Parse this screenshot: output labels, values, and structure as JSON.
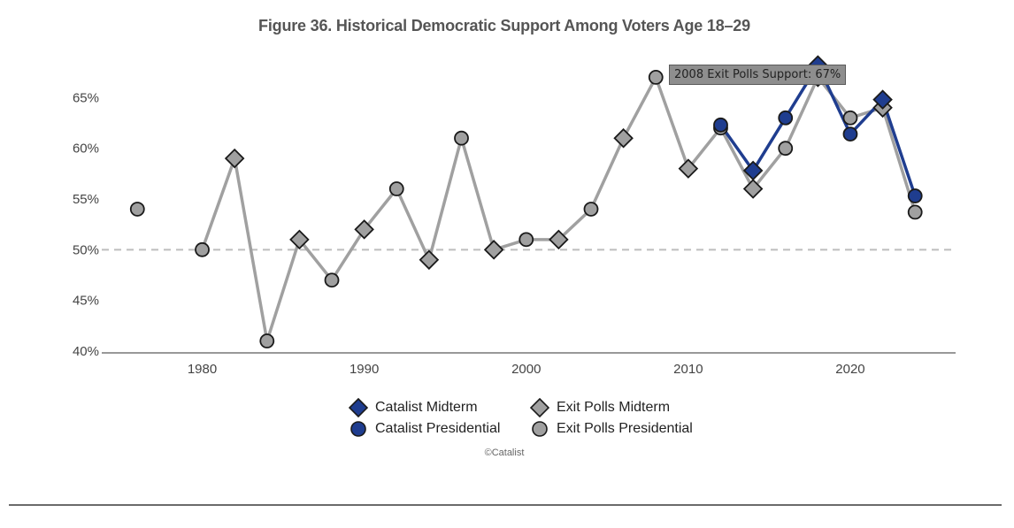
{
  "chart_data": {
    "type": "line",
    "title": "Figure 36. Historical Democratic Support Among Voters Age 18–29",
    "xlabel": "",
    "ylabel": "",
    "xlim": [
      1973.8,
      2026.5
    ],
    "ylim": [
      40,
      70
    ],
    "x_ticks": [
      1980,
      1990,
      2000,
      2010,
      2020
    ],
    "y_ticks": [
      40,
      45,
      50,
      55,
      60,
      65
    ],
    "y_tick_suffix": "%",
    "reference_line": {
      "y": 50,
      "style": "dashed"
    },
    "series": [
      {
        "name": "Exit Polls",
        "line": true,
        "color": "#a0a0a0",
        "points": [
          {
            "x": 1976,
            "y": 54,
            "kind": "presidential"
          },
          {
            "x": 1980,
            "y": 50,
            "kind": "presidential"
          },
          {
            "x": 1982,
            "y": 59,
            "kind": "midterm"
          },
          {
            "x": 1984,
            "y": 41,
            "kind": "presidential"
          },
          {
            "x": 1986,
            "y": 51,
            "kind": "midterm"
          },
          {
            "x": 1988,
            "y": 47,
            "kind": "presidential"
          },
          {
            "x": 1990,
            "y": 52,
            "kind": "midterm"
          },
          {
            "x": 1992,
            "y": 56,
            "kind": "presidential"
          },
          {
            "x": 1994,
            "y": 49,
            "kind": "midterm"
          },
          {
            "x": 1996,
            "y": 61,
            "kind": "presidential"
          },
          {
            "x": 1998,
            "y": 50,
            "kind": "midterm"
          },
          {
            "x": 2000,
            "y": 51,
            "kind": "presidential"
          },
          {
            "x": 2002,
            "y": 51,
            "kind": "midterm"
          },
          {
            "x": 2004,
            "y": 54,
            "kind": "presidential"
          },
          {
            "x": 2006,
            "y": 61,
            "kind": "midterm"
          },
          {
            "x": 2008,
            "y": 67,
            "kind": "presidential"
          },
          {
            "x": 2010,
            "y": 58,
            "kind": "midterm"
          },
          {
            "x": 2012,
            "y": 62,
            "kind": "presidential"
          },
          {
            "x": 2014,
            "y": 56,
            "kind": "midterm"
          },
          {
            "x": 2016,
            "y": 60,
            "kind": "presidential"
          },
          {
            "x": 2018,
            "y": 67,
            "kind": "midterm"
          },
          {
            "x": 2020,
            "y": 63,
            "kind": "presidential"
          },
          {
            "x": 2022,
            "y": 64,
            "kind": "midterm"
          },
          {
            "x": 2024,
            "y": 53.7,
            "kind": "presidential"
          }
        ]
      },
      {
        "name": "Catalist",
        "line": true,
        "color": "#1f3d8f",
        "points": [
          {
            "x": 2012,
            "y": 62.3,
            "kind": "presidential"
          },
          {
            "x": 2014,
            "y": 57.8,
            "kind": "midterm"
          },
          {
            "x": 2016,
            "y": 63,
            "kind": "presidential"
          },
          {
            "x": 2018,
            "y": 68.2,
            "kind": "midterm"
          },
          {
            "x": 2020,
            "y": 61.4,
            "kind": "presidential"
          },
          {
            "x": 2022,
            "y": 64.8,
            "kind": "midterm"
          },
          {
            "x": 2024,
            "y": 55.3,
            "kind": "presidential"
          }
        ]
      }
    ],
    "annotation": {
      "text": "2008 Exit Polls Support: 67%",
      "x": 2008,
      "y": 67
    },
    "legend": {
      "placement": "bottom-center",
      "items": [
        {
          "label": "Catalist Midterm",
          "marker": "diamond",
          "color": "#1f3d8f"
        },
        {
          "label": "Exit Polls Midterm",
          "marker": "diamond",
          "color": "#a0a0a0"
        },
        {
          "label": "Catalist Presidential",
          "marker": "circle",
          "color": "#1f3d8f"
        },
        {
          "label": "Exit Polls Presidential",
          "marker": "circle",
          "color": "#a0a0a0"
        }
      ]
    },
    "credit": "©Catalist"
  }
}
